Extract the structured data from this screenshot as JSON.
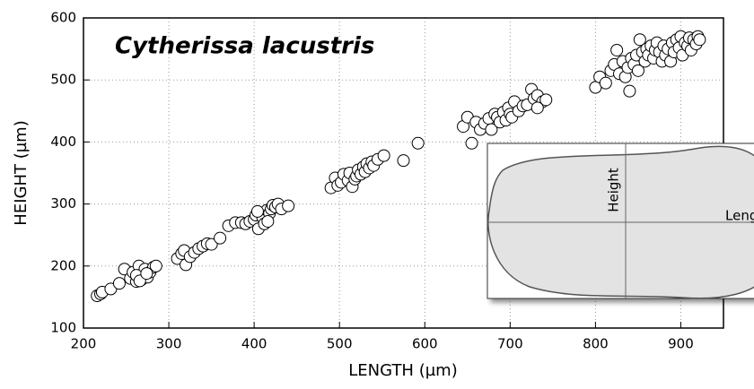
{
  "chart_data": {
    "type": "scatter",
    "title": "Cytherissa lacustris",
    "x_label": "LENGTH (µm)",
    "y_label": "HEIGHT (µm)",
    "x": [
      216,
      220,
      222,
      232,
      242,
      248,
      255,
      258,
      262,
      265,
      268,
      270,
      272,
      275,
      278,
      282,
      285,
      262,
      266,
      274,
      310,
      315,
      318,
      320,
      325,
      330,
      335,
      340,
      345,
      350,
      360,
      370,
      378,
      385,
      390,
      395,
      400,
      402,
      405,
      408,
      410,
      412,
      415,
      418,
      420,
      422,
      425,
      428,
      432,
      440,
      404,
      416,
      490,
      495,
      498,
      502,
      505,
      510,
      512,
      515,
      518,
      520,
      522,
      525,
      528,
      530,
      532,
      535,
      538,
      540,
      545,
      552,
      575,
      592,
      645,
      650,
      655,
      660,
      665,
      670,
      675,
      678,
      682,
      685,
      688,
      692,
      695,
      698,
      700,
      702,
      705,
      710,
      715,
      720,
      725,
      728,
      732,
      738,
      742,
      732,
      800,
      805,
      812,
      818,
      822,
      825,
      828,
      832,
      835,
      838,
      840,
      842,
      845,
      848,
      850,
      852,
      855,
      858,
      860,
      862,
      865,
      868,
      870,
      872,
      875,
      878,
      880,
      882,
      885,
      888,
      890,
      892,
      895,
      898,
      900,
      902,
      905,
      908,
      910,
      912,
      915,
      918,
      920,
      922
    ],
    "y": [
      152,
      155,
      158,
      163,
      172,
      195,
      180,
      190,
      175,
      200,
      178,
      185,
      195,
      182,
      190,
      198,
      200,
      185,
      176,
      188,
      212,
      220,
      225,
      202,
      215,
      222,
      228,
      232,
      236,
      235,
      245,
      265,
      270,
      270,
      268,
      272,
      275,
      282,
      260,
      285,
      278,
      268,
      290,
      285,
      292,
      298,
      295,
      300,
      292,
      297,
      288,
      272,
      326,
      342,
      330,
      335,
      348,
      338,
      350,
      328,
      340,
      345,
      355,
      348,
      360,
      352,
      365,
      358,
      368,
      362,
      372,
      378,
      370,
      398,
      425,
      440,
      398,
      432,
      420,
      430,
      438,
      420,
      445,
      440,
      432,
      448,
      435,
      455,
      445,
      440,
      465,
      450,
      458,
      460,
      485,
      470,
      475,
      465,
      468,
      455,
      488,
      505,
      495,
      515,
      525,
      548,
      510,
      530,
      505,
      520,
      482,
      535,
      525,
      540,
      515,
      565,
      545,
      530,
      550,
      540,
      555,
      535,
      548,
      560,
      545,
      530,
      555,
      540,
      550,
      530,
      560,
      545,
      565,
      552,
      570,
      540,
      560,
      555,
      568,
      548,
      565,
      558,
      570,
      565
    ],
    "xlim": [
      200,
      950
    ],
    "ylim": [
      100,
      600
    ],
    "xticks": [
      200,
      300,
      400,
      500,
      600,
      700,
      800,
      900
    ],
    "yticks": [
      100,
      200,
      300,
      400,
      500,
      600
    ],
    "grid": true,
    "color": "#ffffff"
  },
  "inset": {
    "height_label": "Height",
    "length_label": "Length"
  }
}
